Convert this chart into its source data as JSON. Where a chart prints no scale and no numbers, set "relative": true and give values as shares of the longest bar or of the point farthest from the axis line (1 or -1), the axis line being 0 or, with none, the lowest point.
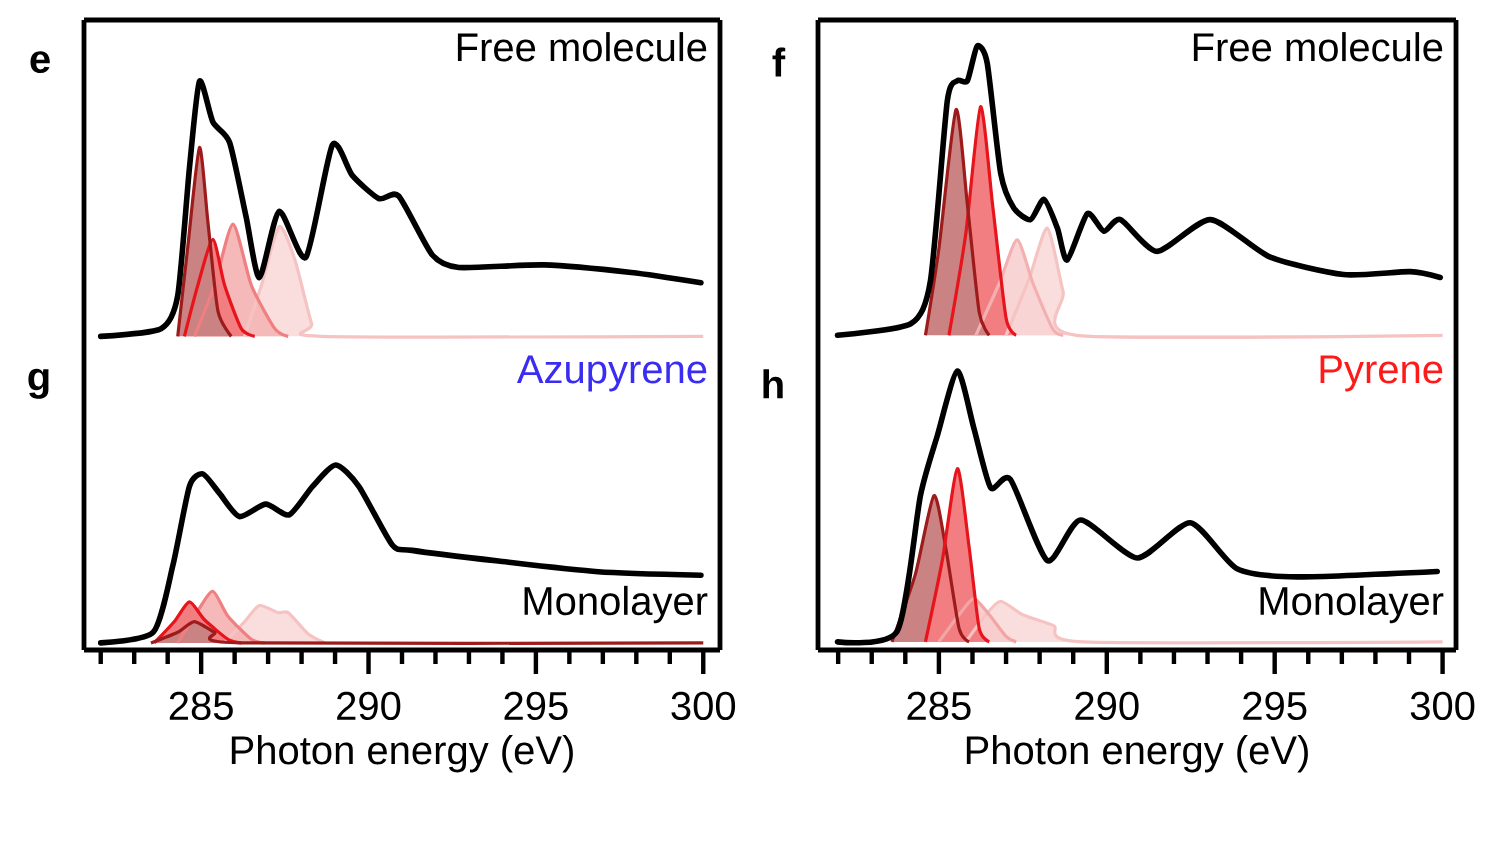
{
  "chart_data": [
    {
      "type": "area",
      "title": "e",
      "relative": true,
      "tick_labels": false,
      "xlim": [
        281.5,
        300.5
      ],
      "annotations": [
        "Free molecule"
      ],
      "series": [
        {
          "color": "#f6c3c3",
          "x": [
            286.3,
            286.8,
            287.33,
            287.8,
            288.3,
            288.6,
            300
          ],
          "values": [
            0,
            0.2,
            0.43,
            0.3,
            0.05,
            0,
            0
          ]
        },
        {
          "color": "#ef7f80",
          "x": [
            284.8,
            285.4,
            285.95,
            286.5,
            287.2,
            287.6
          ],
          "values": [
            0,
            0.2,
            0.44,
            0.2,
            0.03,
            0
          ]
        },
        {
          "color": "#e8141c",
          "x": [
            284.5,
            284.9,
            285.35,
            285.7,
            286.2,
            286.6
          ],
          "values": [
            0,
            0.2,
            0.38,
            0.2,
            0.03,
            0
          ]
        },
        {
          "color": "#9e1b1b",
          "x": [
            284.3,
            284.6,
            284.95,
            285.2,
            285.5,
            285.9
          ],
          "values": [
            0,
            0.35,
            0.74,
            0.45,
            0.1,
            0
          ]
        },
        {
          "type": "line",
          "color": "#000000",
          "x": [
            282.0,
            283.8,
            284.3,
            284.65,
            284.95,
            285.35,
            285.85,
            286.34,
            286.74,
            287.33,
            288.13,
            288.92,
            289.52,
            290.31,
            290.9,
            291.9,
            292.7,
            295.25,
            297.85,
            299.93
          ],
          "values": [
            0,
            0.03,
            0.16,
            0.66,
            1.0,
            0.84,
            0.76,
            0.47,
            0.23,
            0.49,
            0.31,
            0.75,
            0.63,
            0.54,
            0.55,
            0.32,
            0.27,
            0.28,
            0.25,
            0.21
          ]
        }
      ]
    },
    {
      "type": "area",
      "title": "f",
      "relative": true,
      "tick_labels": false,
      "xlim": [
        281.4,
        300.4
      ],
      "annotations": [
        "Free molecule"
      ],
      "series": [
        {
          "color": "#f6c3c3",
          "x": [
            287.0,
            287.7,
            288.23,
            288.7,
            289.1,
            300
          ],
          "values": [
            0,
            0.2,
            0.37,
            0.15,
            0,
            0
          ]
        },
        {
          "color": "#f4b0b0",
          "x": [
            286.1,
            286.8,
            287.33,
            287.8,
            288.4,
            288.7
          ],
          "values": [
            0,
            0.18,
            0.33,
            0.18,
            0.02,
            0
          ]
        },
        {
          "color": "#e8141c",
          "x": [
            285.3,
            285.8,
            286.24,
            286.6,
            287.0,
            287.3
          ],
          "values": [
            0,
            0.35,
            0.79,
            0.45,
            0.06,
            0
          ]
        },
        {
          "color": "#9e1b1b",
          "x": [
            284.6,
            285.0,
            285.51,
            285.85,
            286.2,
            286.5
          ],
          "values": [
            0,
            0.3,
            0.78,
            0.45,
            0.08,
            0
          ]
        },
        {
          "type": "line",
          "color": "#000000",
          "x": [
            281.98,
            284.16,
            284.75,
            285.25,
            285.55,
            285.85,
            286.14,
            286.44,
            286.84,
            287.23,
            287.73,
            288.13,
            288.53,
            288.82,
            289.42,
            289.91,
            290.41,
            291.5,
            293.09,
            294.87,
            297.05,
            299.04,
            299.93
          ],
          "values": [
            0,
            0.04,
            0.19,
            0.81,
            0.88,
            0.88,
            1.0,
            0.94,
            0.56,
            0.44,
            0.4,
            0.47,
            0.37,
            0.26,
            0.42,
            0.36,
            0.4,
            0.29,
            0.4,
            0.27,
            0.21,
            0.22,
            0.2
          ]
        }
      ]
    },
    {
      "type": "area",
      "title": "g",
      "relative": true,
      "tick_labels": "x",
      "xlim": [
        281.5,
        300.5
      ],
      "xlabel": "Photon energy (eV)",
      "xticks": [
        {
          "value": 282,
          "label": null
        },
        {
          "value": 283,
          "label": null
        },
        {
          "value": 284,
          "label": null
        },
        285,
        {
          "value": 286,
          "label": null
        },
        {
          "value": 287,
          "label": null
        },
        {
          "value": 288,
          "label": null
        },
        {
          "value": 289,
          "label": null
        },
        290,
        {
          "value": 291,
          "label": null
        },
        {
          "value": 292,
          "label": null
        },
        {
          "value": 293,
          "label": null
        },
        {
          "value": 294,
          "label": null
        },
        295,
        {
          "value": 296,
          "label": null
        },
        {
          "value": 297,
          "label": null
        },
        {
          "value": 298,
          "label": null
        },
        {
          "value": 299,
          "label": null
        },
        300
      ],
      "annotations": [
        "Azupyrene",
        "Monolayer"
      ],
      "series": [
        {
          "color": "#f6c3c3",
          "x": [
            285.7,
            286.3,
            286.74,
            287.3,
            287.6,
            288.2,
            288.7
          ],
          "values": [
            0,
            0.12,
            0.21,
            0.17,
            0.17,
            0.05,
            0
          ]
        },
        {
          "color": "#ef7f80",
          "x": [
            284.3,
            284.9,
            285.35,
            285.8,
            286.5,
            286.9
          ],
          "values": [
            0,
            0.18,
            0.29,
            0.15,
            0.02,
            0
          ]
        },
        {
          "color": "#e8141c",
          "x": [
            283.6,
            284.2,
            284.65,
            285.1,
            285.8,
            286.2
          ],
          "values": [
            0,
            0.12,
            0.23,
            0.13,
            0.02,
            0
          ]
        },
        {
          "color": "#9e1b1b",
          "x": [
            283.5,
            284.3,
            284.8,
            285.4,
            286.2,
            300
          ],
          "values": [
            0,
            0.06,
            0.12,
            0.06,
            0,
            0
          ]
        },
        {
          "type": "line",
          "color": "#000000",
          "x": [
            282.0,
            283.57,
            284.16,
            284.65,
            285.05,
            285.55,
            286.14,
            286.93,
            287.63,
            288.33,
            289.02,
            289.71,
            290.71,
            291.3,
            293.88,
            296.86,
            299.93
          ],
          "values": [
            0,
            0.06,
            0.44,
            0.88,
            0.95,
            0.84,
            0.71,
            0.78,
            0.72,
            0.88,
            1.0,
            0.88,
            0.55,
            0.52,
            0.46,
            0.4,
            0.38
          ]
        }
      ]
    },
    {
      "type": "area",
      "title": "h",
      "relative": true,
      "tick_labels": "x",
      "xlim": [
        281.4,
        300.4
      ],
      "xlabel": "Photon energy (eV)",
      "xticks": [
        {
          "value": 282,
          "label": null
        },
        {
          "value": 283,
          "label": null
        },
        {
          "value": 284,
          "label": null
        },
        285,
        {
          "value": 286,
          "label": null
        },
        {
          "value": 287,
          "label": null
        },
        {
          "value": 288,
          "label": null
        },
        {
          "value": 289,
          "label": null
        },
        290,
        {
          "value": 291,
          "label": null
        },
        {
          "value": 292,
          "label": null
        },
        {
          "value": 293,
          "label": null
        },
        {
          "value": 294,
          "label": null
        },
        295,
        {
          "value": 296,
          "label": null
        },
        {
          "value": 297,
          "label": null
        },
        {
          "value": 298,
          "label": null
        },
        {
          "value": 299,
          "label": null
        },
        300
      ],
      "annotations": [
        "Pyrene",
        "Monolayer"
      ],
      "series": [
        {
          "color": "#f6c3c3",
          "x": [
            285.8,
            286.4,
            286.84,
            287.5,
            288.42,
            289.3,
            300
          ],
          "values": [
            0,
            0.1,
            0.15,
            0.1,
            0.06,
            0,
            0
          ]
        },
        {
          "color": "#f2a5a5",
          "x": [
            285.0,
            285.6,
            286.04,
            286.5,
            287.0,
            287.3
          ],
          "values": [
            0,
            0.1,
            0.16,
            0.1,
            0.02,
            0
          ]
        },
        {
          "color": "#9e1b1b",
          "x": [
            283.6,
            284.3,
            284.85,
            285.2,
            285.6,
            285.9
          ],
          "values": [
            0,
            0.25,
            0.54,
            0.35,
            0.05,
            0
          ]
        },
        {
          "color": "#e8141c",
          "x": [
            284.6,
            285.1,
            285.55,
            285.9,
            286.2,
            286.5
          ],
          "values": [
            0,
            0.3,
            0.64,
            0.35,
            0.05,
            0
          ]
        },
        {
          "type": "line",
          "color": "#000000",
          "x": [
            281.98,
            283.76,
            284.45,
            284.95,
            285.55,
            286.04,
            286.54,
            287.13,
            288.23,
            289.22,
            290.91,
            292.49,
            293.88,
            295.67,
            299.84
          ],
          "values": [
            0,
            0.04,
            0.54,
            0.76,
            1.0,
            0.79,
            0.57,
            0.6,
            0.3,
            0.45,
            0.31,
            0.44,
            0.27,
            0.24,
            0.26
          ]
        }
      ]
    }
  ]
}
